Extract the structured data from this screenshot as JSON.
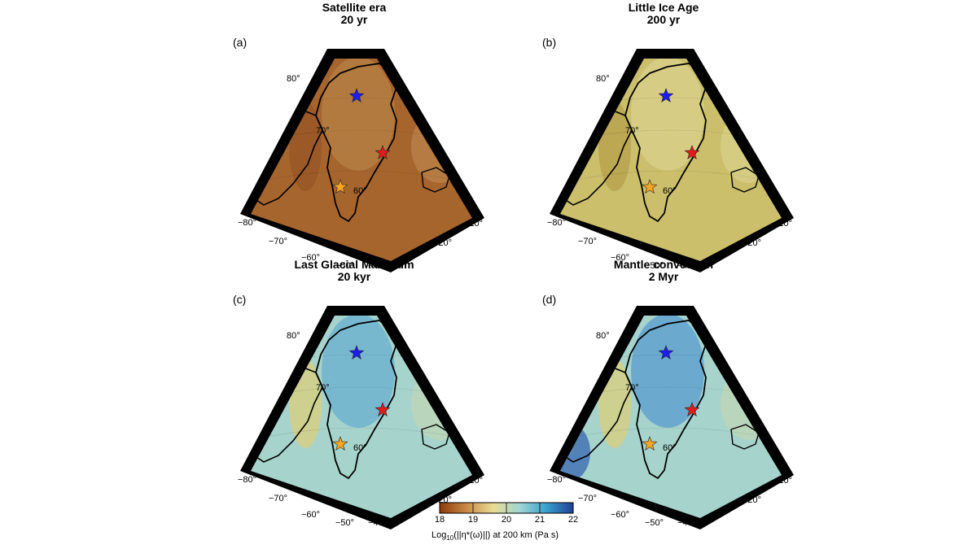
{
  "panels": [
    {
      "id": "a",
      "letter": "(a)",
      "title": "Satellite era",
      "subtitle": "20 yr",
      "fill": "#a7652e",
      "blobs": [
        "#b77f44",
        "#975626",
        "#c08a50"
      ]
    },
    {
      "id": "b",
      "letter": "(b)",
      "title": "Little Ice Age",
      "subtitle": "200 yr",
      "fill": "#cbbf6c",
      "blobs": [
        "#d8d08a",
        "#b8a14e",
        "#dcd690"
      ]
    },
    {
      "id": "c",
      "letter": "(c)",
      "title": "Last Glacial Maximum",
      "subtitle": "20 kyr",
      "fill": "#a6d3cc",
      "blobs": [
        "#6db2d0",
        "#d8cf7f",
        "#c6d9b0"
      ]
    },
    {
      "id": "d",
      "letter": "(d)",
      "title": "Mantle convection",
      "subtitle": "2 Myr",
      "fill": "#a6d3cc",
      "blobs": [
        "#5e9fd0",
        "#d8cf7f",
        "#c6d9b0"
      ]
    }
  ],
  "lat_labels": [
    "80°",
    "70°",
    "60°"
  ],
  "lon_labels": [
    "−80°",
    "−70°",
    "−60°",
    "−50°",
    "−40°",
    "−30°",
    "−20°",
    "−10°"
  ],
  "stars": [
    {
      "name": "blue-star",
      "color": "#1d1df0"
    },
    {
      "name": "red-star",
      "color": "#e41b1b"
    },
    {
      "name": "orange-star",
      "color": "#f5a623"
    }
  ],
  "colorbar": {
    "ticks": [
      "18",
      "19",
      "20",
      "21",
      "22"
    ],
    "label_pre": "Log",
    "label_sub": "10",
    "label_post": "(||η*(ω)||) at 200 km (Pa s)",
    "colors": [
      "#8c3a0a",
      "#c98a45",
      "#e9dc95",
      "#9fd6d2",
      "#3aa0cf",
      "#1f3f93"
    ]
  }
}
